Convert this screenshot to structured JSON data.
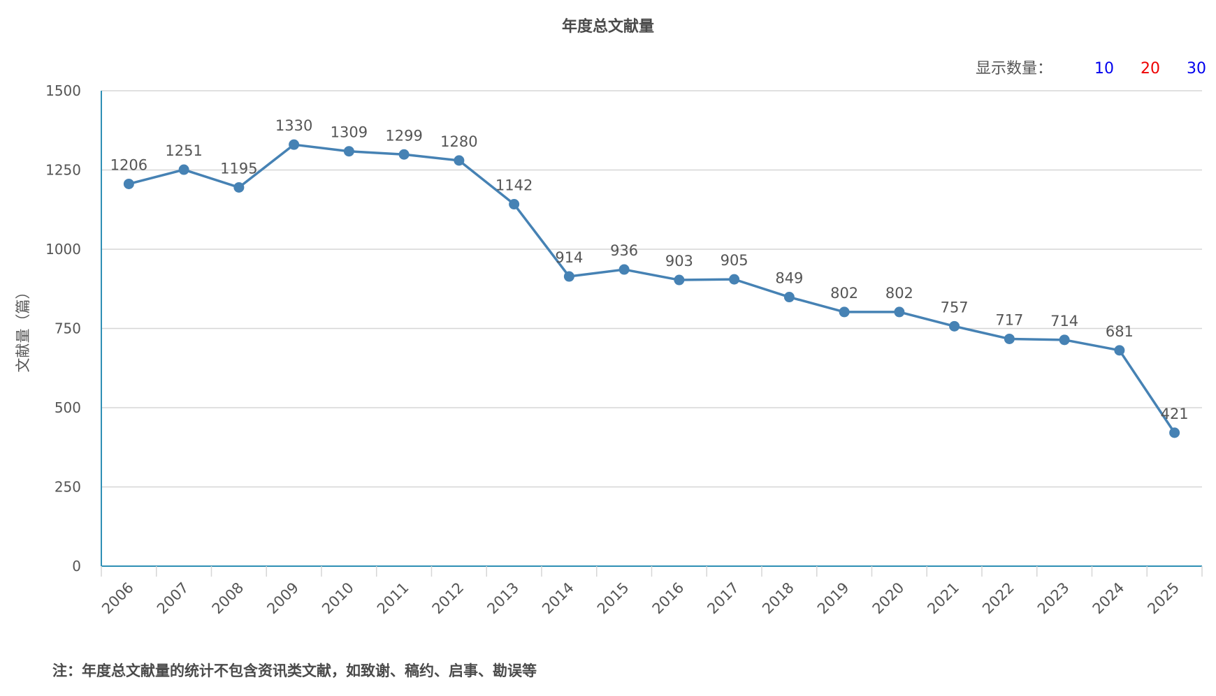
{
  "page": {
    "footnote": "注：年度总文献量的统计不包含资讯类文献，如致谢、稿约、启事、勘误等"
  },
  "controls": {
    "label": "显示数量：",
    "options": [
      "10",
      "20",
      "30"
    ],
    "colors": [
      "#0000ee",
      "#ee0000",
      "#0000ee"
    ]
  },
  "colors": {
    "line": "#4682b4",
    "axis": "#2e8fb5",
    "grid": "#d6d6d6",
    "text": "#555555"
  },
  "chart_data": {
    "type": "line",
    "title": "年度总文献量",
    "ylabel": "文献量（篇）",
    "xlabel": "",
    "categories": [
      "2006",
      "2007",
      "2008",
      "2009",
      "2010",
      "2011",
      "2012",
      "2013",
      "2014",
      "2015",
      "2016",
      "2017",
      "2018",
      "2019",
      "2020",
      "2021",
      "2022",
      "2023",
      "2024",
      "2025"
    ],
    "values": [
      1206,
      1251,
      1195,
      1330,
      1309,
      1299,
      1280,
      1142,
      914,
      936,
      903,
      905,
      849,
      802,
      802,
      757,
      717,
      714,
      681,
      421
    ],
    "ylim": [
      0,
      1500
    ],
    "yticks": [
      0,
      250,
      500,
      750,
      1000,
      1250,
      1500
    ],
    "data_labels": true,
    "grid": true,
    "legend": "none"
  }
}
